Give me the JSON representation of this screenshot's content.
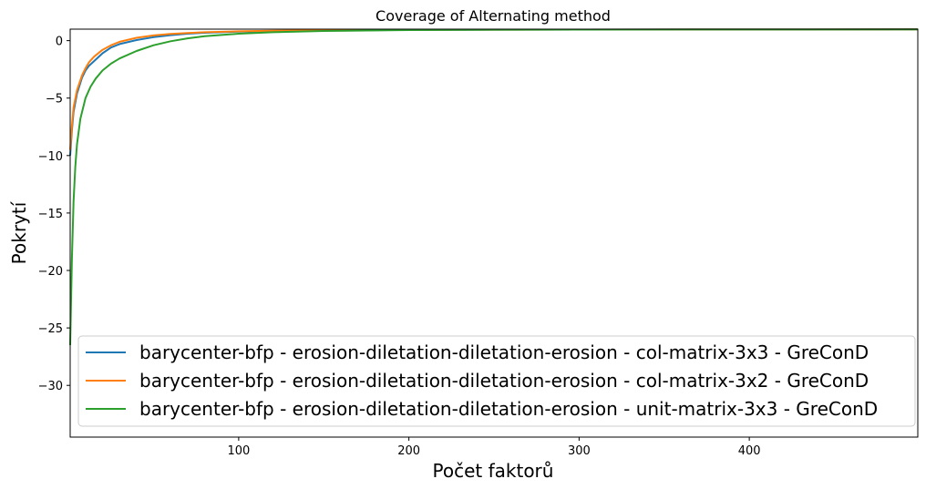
{
  "chart_data": {
    "type": "line",
    "title": "Coverage of Alternating method",
    "xlabel": "Počet faktorů",
    "ylabel": "Pokrytí",
    "xlim": [
      1,
      499
    ],
    "ylim": [
      -34.5,
      1.0
    ],
    "xticks": [
      100,
      200,
      300,
      400
    ],
    "xtick_labels": [
      "100",
      "200",
      "300",
      "400"
    ],
    "yticks": [
      0,
      -5,
      -10,
      -15,
      -20,
      -25,
      -30
    ],
    "ytick_labels": [
      "0",
      "−5",
      "−10",
      "−15",
      "−20",
      "−25",
      "−30"
    ],
    "grid": false,
    "legend_position": "lower-right",
    "series": [
      {
        "name": "barycenter-bfp - erosion-diletation-diletation-erosion - col-matrix-3x3 - GreConD",
        "color": "#1f77b4",
        "x": [
          1,
          2,
          3,
          5,
          8,
          10,
          12,
          15,
          20,
          25,
          30,
          40,
          50,
          60,
          70,
          80,
          100,
          120,
          150,
          200,
          250,
          300,
          400,
          499
        ],
        "y": [
          -10.0,
          -7.8,
          -6.2,
          -4.6,
          -3.2,
          -2.6,
          -2.2,
          -1.8,
          -1.1,
          -0.6,
          -0.3,
          0.05,
          0.3,
          0.48,
          0.6,
          0.68,
          0.78,
          0.84,
          0.89,
          0.93,
          0.95,
          0.96,
          0.97,
          0.98
        ]
      },
      {
        "name": "barycenter-bfp - erosion-diletation-diletation-erosion - col-matrix-3x2 - GreConD",
        "color": "#ff7f0e",
        "x": [
          1,
          2,
          3,
          5,
          8,
          10,
          12,
          15,
          20,
          25,
          30,
          40,
          50,
          60,
          70,
          80,
          100,
          120,
          150,
          200,
          250,
          300,
          400,
          499
        ],
        "y": [
          -9.5,
          -7.4,
          -5.8,
          -4.3,
          -3.0,
          -2.4,
          -1.9,
          -1.4,
          -0.8,
          -0.4,
          -0.1,
          0.25,
          0.45,
          0.58,
          0.67,
          0.73,
          0.81,
          0.86,
          0.9,
          0.94,
          0.95,
          0.96,
          0.97,
          0.98
        ]
      },
      {
        "name": "barycenter-bfp - erosion-diletation-diletation-erosion - unit-matrix-3x3 - GreConD",
        "color": "#2ca02c",
        "x": [
          1,
          2,
          3,
          4,
          5,
          7,
          10,
          13,
          16,
          20,
          25,
          30,
          40,
          50,
          60,
          70,
          80,
          100,
          120,
          150,
          200,
          250,
          300,
          400,
          499
        ],
        "y": [
          -26.5,
          -19.0,
          -14.0,
          -11.0,
          -9.0,
          -6.8,
          -5.0,
          -4.0,
          -3.3,
          -2.6,
          -2.0,
          -1.55,
          -0.9,
          -0.4,
          -0.05,
          0.2,
          0.38,
          0.6,
          0.73,
          0.84,
          0.92,
          0.95,
          0.96,
          0.97,
          0.98
        ]
      }
    ]
  }
}
